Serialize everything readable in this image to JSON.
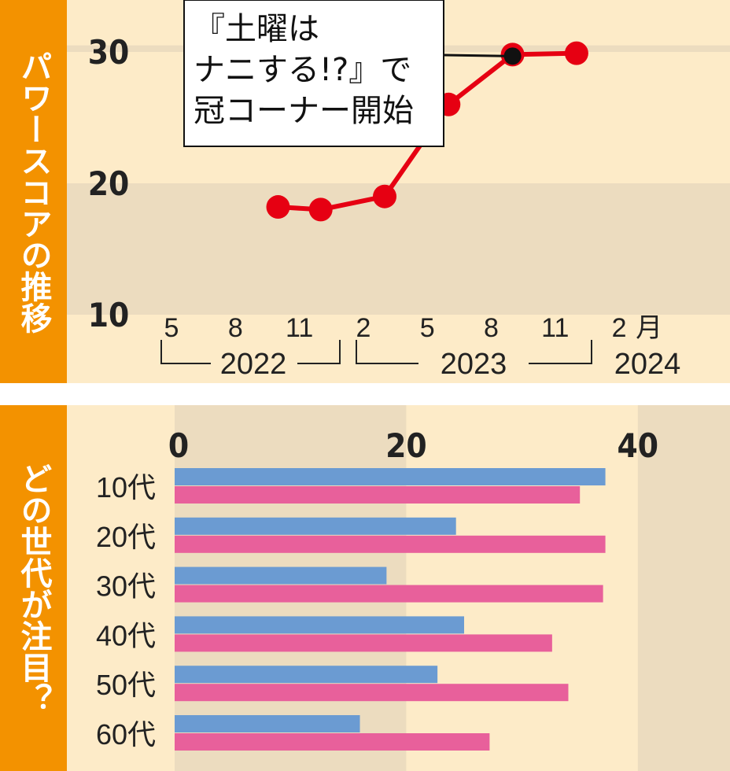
{
  "chart_data": [
    {
      "type": "line",
      "title": "パワースコアの推移",
      "y_ticks": [
        "30",
        "20",
        "10"
      ],
      "ylim": [
        10,
        30.5
      ],
      "x_month_labels": [
        "5",
        "8",
        "11",
        "2",
        "5",
        "8",
        "11",
        "2",
        "月"
      ],
      "x_year_labels": [
        "2022",
        "2023",
        "2024"
      ],
      "annotation": {
        "lines": [
          "『土曜は",
          "ナニする!?』で",
          "冠コーナー開始"
        ],
        "x": "2023-09",
        "y": 29.8
      },
      "series": [
        {
          "color": "#e60012",
          "x": [
            "2022-10",
            "2022-12",
            "2023-03",
            "2023-06",
            "2023-09",
            "2023-12"
          ],
          "y": [
            18.2,
            18.0,
            19.0,
            26.0,
            29.8,
            29.9
          ]
        }
      ],
      "grid": "horizontal bands",
      "bg_colors": [
        "#fdebc8",
        "#ecdcbf"
      ]
    },
    {
      "type": "bar",
      "orientation": "horizontal",
      "title": "どの世代が注目？",
      "x_ticks": [
        "0",
        "20",
        "40"
      ],
      "xlim": [
        0,
        40
      ],
      "categories": [
        "10代",
        "20代",
        "30代",
        "40代",
        "50代",
        "60代"
      ],
      "series": [
        {
          "color": "#6b9bd2",
          "values": [
            37.2,
            24.3,
            18.3,
            25.0,
            22.7,
            16.0
          ]
        },
        {
          "color": "#e8609b",
          "values": [
            35.0,
            37.2,
            37.0,
            32.6,
            34.0,
            27.2
          ]
        }
      ]
    }
  ]
}
